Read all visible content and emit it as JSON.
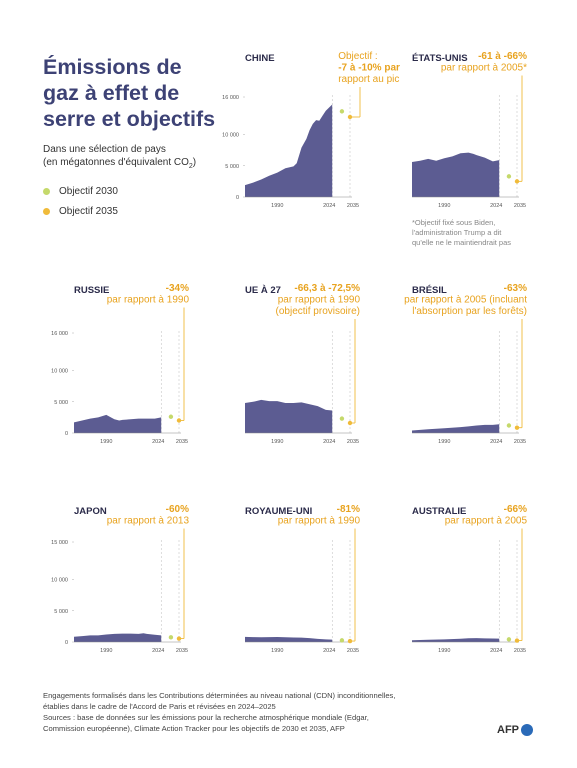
{
  "title": "Émissions de gaz à effet de serre et objectifs",
  "subtitle_line1": "Dans une sélection de pays",
  "subtitle_line2": "(en mégatonnes d'équivalent CO",
  "subtitle_sub": "2",
  "subtitle_close": ")",
  "legend": [
    {
      "label": "Objectif 2030",
      "color": "#c5d96b"
    },
    {
      "label": "Objectif 2035",
      "color": "#f0bb3a"
    }
  ],
  "colors": {
    "area": "#5c5c92",
    "target_line": "#f0bb3a",
    "title": "#3d4275"
  },
  "footer": [
    "Engagements formalisés dans les Contributions déterminées au niveau national (CDN) inconditionnelles,",
    "établies dans le cadre de l'Accord de Paris et révisées en 2024–2025",
    "Sources : base de données sur les émissions pour la recherche atmosphérique mondiale (Edgar,",
    "Commission européenne), Climate Action Tracker pour les objectifs de 2030 et 2035, AFP"
  ],
  "logo": "AFP",
  "chart_data": [
    {
      "type": "area",
      "country": "CHINE",
      "annotation_lines": [
        "Objectif :",
        "-7 à -10% par",
        "rapport au pic"
      ],
      "annotation_bold": [
        false,
        true,
        false
      ],
      "x_ticks": [
        "1990",
        "2024",
        "2035"
      ],
      "y_ticks": [
        "16 000",
        "10 000",
        "5 000",
        "0"
      ],
      "show_y": true,
      "ylim": [
        0,
        16000
      ],
      "x": [
        1970,
        1975,
        1980,
        1985,
        1990,
        1995,
        2000,
        2002,
        2005,
        2008,
        2010,
        2012,
        2014,
        2016,
        2018,
        2020,
        2022,
        2024
      ],
      "values": [
        1900,
        2300,
        2800,
        3400,
        3900,
        4600,
        4900,
        5400,
        7900,
        9300,
        10700,
        11700,
        12300,
        12200,
        13000,
        13800,
        14300,
        14800
      ],
      "target_2030": 13700,
      "target_2035": 12800
    },
    {
      "type": "area",
      "country": "ÉTATS-UNIS",
      "annotation_lines": [
        "-61 à -66%",
        "par rapport à 2005*"
      ],
      "annotation_bold": [
        true,
        false
      ],
      "x_ticks": [
        "1990",
        "2024",
        "2035"
      ],
      "y_ticks": [],
      "show_y": false,
      "ylim": [
        0,
        16000
      ],
      "x": [
        1970,
        1975,
        1980,
        1985,
        1990,
        1995,
        2000,
        2005,
        2008,
        2010,
        2015,
        2020,
        2024
      ],
      "values": [
        5600,
        5800,
        6100,
        5800,
        6200,
        6500,
        7000,
        7100,
        6900,
        6700,
        6300,
        5700,
        5900
      ],
      "target_2030": 3300,
      "target_2035": 2500,
      "note": [
        "*Objectif fixé sous Biden,",
        "l'administration Trump a dit",
        "qu'elle ne le maintiendrait pas"
      ]
    },
    {
      "type": "area",
      "country": "RUSSIE",
      "annotation_lines": [
        "-34%",
        "par rapport à 1990"
      ],
      "annotation_bold": [
        true,
        false
      ],
      "x_ticks": [
        "1990",
        "2024",
        "2035"
      ],
      "y_ticks": [
        "16 000",
        "10 000",
        "5 000",
        "0"
      ],
      "show_y": true,
      "ylim": [
        0,
        16000
      ],
      "x": [
        1970,
        1975,
        1980,
        1985,
        1990,
        1995,
        1998,
        2000,
        2005,
        2010,
        2015,
        2020,
        2024
      ],
      "values": [
        1700,
        2000,
        2300,
        2500,
        2900,
        2200,
        2000,
        2100,
        2200,
        2300,
        2300,
        2300,
        2500
      ],
      "target_2030": 2600,
      "target_2035": 2000
    },
    {
      "type": "area",
      "country": "UE À 27",
      "annotation_lines": [
        "-66,3 à -72,5%",
        "par rapport à 1990",
        "(objectif provisoire)"
      ],
      "annotation_bold": [
        true,
        false,
        false
      ],
      "x_ticks": [
        "1990",
        "2024",
        "2035"
      ],
      "y_ticks": [],
      "show_y": false,
      "ylim": [
        0,
        16000
      ],
      "x": [
        1970,
        1975,
        1980,
        1985,
        1990,
        1995,
        2000,
        2005,
        2010,
        2015,
        2020,
        2024
      ],
      "values": [
        4800,
        5000,
        5300,
        5100,
        5100,
        4800,
        4800,
        4900,
        4600,
        4300,
        3700,
        3600
      ],
      "target_2030": 2300,
      "target_2035": 1600
    },
    {
      "type": "area",
      "country": "BRÉSIL",
      "annotation_lines": [
        "-63%",
        "par rapport à 2005 (incluant",
        "l'absorption par les forêts)"
      ],
      "annotation_bold": [
        true,
        false,
        false
      ],
      "x_ticks": [
        "1990",
        "2024",
        "2035"
      ],
      "y_ticks": [],
      "show_y": false,
      "ylim": [
        0,
        16000
      ],
      "x": [
        1970,
        1980,
        1990,
        2000,
        2005,
        2010,
        2015,
        2020,
        2024
      ],
      "values": [
        400,
        600,
        750,
        950,
        1050,
        1200,
        1300,
        1300,
        1400
      ],
      "target_2030": 1200,
      "target_2035": 850
    },
    {
      "type": "area",
      "country": "JAPON",
      "annotation_lines": [
        "-60%",
        "par rapport à 2013"
      ],
      "annotation_bold": [
        true,
        false
      ],
      "x_ticks": [
        "1990",
        "2024",
        "2035"
      ],
      "y_ticks": [
        "15 000",
        "10 000",
        "5 000",
        "0"
      ],
      "show_y": true,
      "ylim": [
        0,
        16000
      ],
      "x": [
        1970,
        1975,
        1980,
        1985,
        1990,
        1995,
        2000,
        2005,
        2010,
        2013,
        2015,
        2020,
        2024
      ],
      "values": [
        850,
        950,
        1050,
        1050,
        1200,
        1300,
        1350,
        1350,
        1300,
        1400,
        1300,
        1150,
        1050
      ],
      "target_2030": 750,
      "target_2035": 550
    },
    {
      "type": "area",
      "country": "ROYAUME-UNI",
      "annotation_lines": [
        "-81%",
        "par rapport à 1990"
      ],
      "annotation_bold": [
        true,
        false
      ],
      "x_ticks": [
        "1990",
        "2024",
        "2035"
      ],
      "y_ticks": [],
      "show_y": false,
      "ylim": [
        0,
        16000
      ],
      "x": [
        1970,
        1975,
        1980,
        1990,
        2000,
        2005,
        2010,
        2015,
        2020,
        2024
      ],
      "values": [
        820,
        780,
        760,
        800,
        720,
        700,
        620,
        500,
        420,
        390
      ],
      "target_2030": 260,
      "target_2035": 150
    },
    {
      "type": "area",
      "country": "AUSTRALIE",
      "annotation_lines": [
        "-66%",
        "par rapport à 2005"
      ],
      "annotation_bold": [
        true,
        false
      ],
      "x_ticks": [
        "1990",
        "2024",
        "2035"
      ],
      "y_ticks": [],
      "show_y": false,
      "ylim": [
        0,
        16000
      ],
      "x": [
        1970,
        1980,
        1990,
        2000,
        2005,
        2010,
        2015,
        2020,
        2024
      ],
      "values": [
        280,
        350,
        420,
        520,
        600,
        620,
        580,
        560,
        550
      ],
      "target_2030": 420,
      "target_2035": 230
    }
  ]
}
